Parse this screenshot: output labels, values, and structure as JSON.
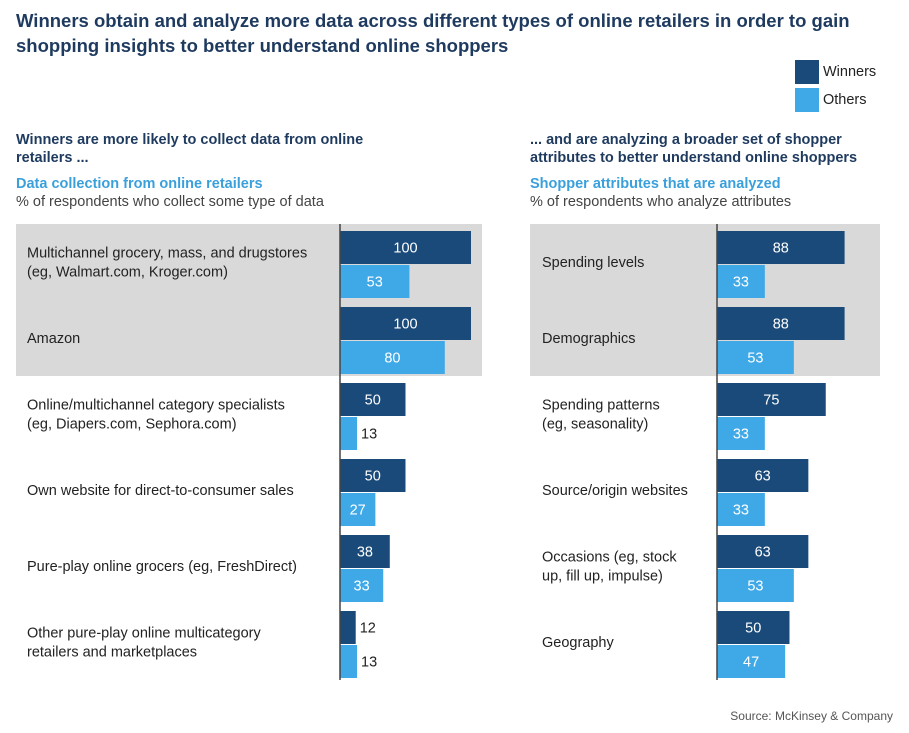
{
  "title": "Winners obtain and analyze more data across different types of online retailers in order to gain shopping insights to better understand online shoppers",
  "legend": [
    {
      "label": "Winners",
      "color": "#1a4a7a"
    },
    {
      "label": "Others",
      "color": "#3fa9e8"
    }
  ],
  "left": {
    "subhead": "Winners are more likely to collect data from online retailers ...",
    "chart_title": "Data collection from online retailers",
    "chart_subtitle": "% of respondents who collect some type of data"
  },
  "right": {
    "subhead": "... and are analyzing a broader set of shopper attributes to better understand online shoppers",
    "chart_title": "Shopper attributes that are analyzed",
    "chart_subtitle": "% of respondents who analyze attributes"
  },
  "source": "Source: McKinsey & Company",
  "colors": {
    "winners": "#1a4a7a",
    "others": "#3fa9e8",
    "highlight": "#d9d9d9",
    "axis": "#444444"
  },
  "chart_data": [
    {
      "type": "bar",
      "orientation": "horizontal",
      "title": "Data collection from online retailers",
      "subtitle": "% of respondents who collect some type of data",
      "categories": [
        [
          "Multichannel grocery, mass, and drugstores",
          "(eg, Walmart.com, Kroger.com)"
        ],
        [
          "Amazon"
        ],
        [
          "Online/multichannel category specialists",
          "(eg, Diapers.com, Sephora.com)"
        ],
        [
          "Own website for direct-to-consumer sales"
        ],
        [
          "Pure-play online grocers (eg, FreshDirect)"
        ],
        [
          "Other pure-play online multicategory",
          "retailers and marketplaces"
        ]
      ],
      "series": [
        {
          "name": "Winners",
          "values": [
            100,
            100,
            50,
            50,
            38,
            12
          ]
        },
        {
          "name": "Others",
          "values": [
            53,
            80,
            13,
            27,
            33,
            13
          ]
        }
      ],
      "highlighted_categories": 2,
      "xlim": [
        0,
        100
      ]
    },
    {
      "type": "bar",
      "orientation": "horizontal",
      "title": "Shopper attributes that are analyzed",
      "subtitle": "% of respondents who analyze attributes",
      "categories": [
        [
          "Spending levels"
        ],
        [
          "Demographics"
        ],
        [
          "Spending patterns",
          "(eg, seasonality)"
        ],
        [
          "Source/origin websites"
        ],
        [
          "Occasions (eg, stock",
          "up, fill up, impulse)"
        ],
        [
          "Geography"
        ]
      ],
      "series": [
        {
          "name": "Winners",
          "values": [
            88,
            88,
            75,
            63,
            63,
            50
          ]
        },
        {
          "name": "Others",
          "values": [
            33,
            53,
            33,
            33,
            53,
            47
          ]
        }
      ],
      "highlighted_categories": 2,
      "xlim": [
        0,
        100
      ]
    }
  ]
}
